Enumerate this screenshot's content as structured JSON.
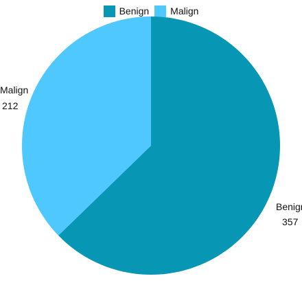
{
  "chart_data": {
    "type": "pie",
    "categories": [
      "Benign",
      "Malign"
    ],
    "values": [
      357,
      212
    ],
    "colors": [
      "#0797b5",
      "#4fc7ff"
    ],
    "title": "",
    "legend": {
      "position": "top-center",
      "items": [
        "Benign",
        "Malign"
      ]
    },
    "data_labels": [
      {
        "name": "Benign",
        "value": "357"
      },
      {
        "name": "Malign",
        "value": "212"
      }
    ],
    "start_angle_deg": 0,
    "direction": "clockwise"
  }
}
